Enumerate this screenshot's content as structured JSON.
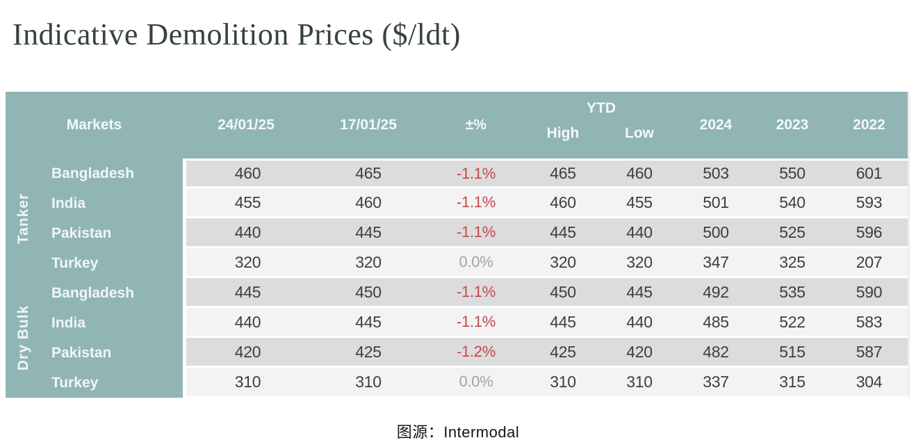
{
  "title": "Indicative Demolition Prices ($/ldt)",
  "caption": "图源：Intermodal",
  "colors": {
    "header_teal": "#91b4b4",
    "row_gray": "#dcdcdc",
    "row_light": "#f3f3f3",
    "negative_red": "#c4494d",
    "neutral_gray": "#a3a3a3",
    "title_color": "#35423f"
  },
  "table": {
    "header": {
      "markets_label": "Markets",
      "date_current": "24/01/25",
      "date_previous": "17/01/25",
      "pct_label": "±%",
      "ytd_label": "YTD",
      "high_label": "High",
      "low_label": "Low",
      "year_2024": "2024",
      "year_2023": "2023",
      "year_2022": "2022"
    },
    "groups": [
      {
        "label": "Tanker",
        "rows": [
          {
            "market": "Bangladesh",
            "values": [
              "460",
              "465",
              "-1.1%",
              "465",
              "460",
              "503",
              "550",
              "601"
            ]
          },
          {
            "market": "India",
            "values": [
              "455",
              "460",
              "-1.1%",
              "460",
              "455",
              "501",
              "540",
              "593"
            ]
          },
          {
            "market": "Pakistan",
            "values": [
              "440",
              "445",
              "-1.1%",
              "445",
              "440",
              "500",
              "525",
              "596"
            ]
          },
          {
            "market": "Turkey",
            "values": [
              "320",
              "320",
              "0.0%",
              "320",
              "320",
              "347",
              "325",
              "207"
            ]
          }
        ]
      },
      {
        "label": "Dry Bulk",
        "rows": [
          {
            "market": "Bangladesh",
            "values": [
              "445",
              "450",
              "-1.1%",
              "450",
              "445",
              "492",
              "535",
              "590"
            ]
          },
          {
            "market": "India",
            "values": [
              "440",
              "445",
              "-1.1%",
              "445",
              "440",
              "485",
              "522",
              "583"
            ]
          },
          {
            "market": "Pakistan",
            "values": [
              "420",
              "425",
              "-1.2%",
              "425",
              "420",
              "482",
              "515",
              "587"
            ]
          },
          {
            "market": "Turkey",
            "values": [
              "310",
              "310",
              "0.0%",
              "310",
              "310",
              "337",
              "315",
              "304"
            ]
          }
        ]
      }
    ]
  },
  "chart_data": {
    "type": "table",
    "title": "Indicative Demolition Prices ($/ldt)",
    "columns": [
      "Sector",
      "Markets",
      "24/01/25",
      "17/01/25",
      "±%",
      "YTD High",
      "YTD Low",
      "2024",
      "2023",
      "2022"
    ],
    "rows": [
      [
        "Tanker",
        "Bangladesh",
        460,
        465,
        "-1.1%",
        465,
        460,
        503,
        550,
        601
      ],
      [
        "Tanker",
        "India",
        455,
        460,
        "-1.1%",
        460,
        455,
        501,
        540,
        593
      ],
      [
        "Tanker",
        "Pakistan",
        440,
        445,
        "-1.1%",
        445,
        440,
        500,
        525,
        596
      ],
      [
        "Tanker",
        "Turkey",
        320,
        320,
        "0.0%",
        320,
        320,
        347,
        325,
        207
      ],
      [
        "Dry Bulk",
        "Bangladesh",
        445,
        450,
        "-1.1%",
        450,
        445,
        492,
        535,
        590
      ],
      [
        "Dry Bulk",
        "India",
        440,
        445,
        "-1.1%",
        445,
        440,
        485,
        522,
        583
      ],
      [
        "Dry Bulk",
        "Pakistan",
        420,
        425,
        "-1.2%",
        425,
        420,
        482,
        515,
        587
      ],
      [
        "Dry Bulk",
        "Turkey",
        310,
        310,
        "0.0%",
        310,
        310,
        337,
        315,
        304
      ]
    ],
    "source": "Intermodal"
  }
}
